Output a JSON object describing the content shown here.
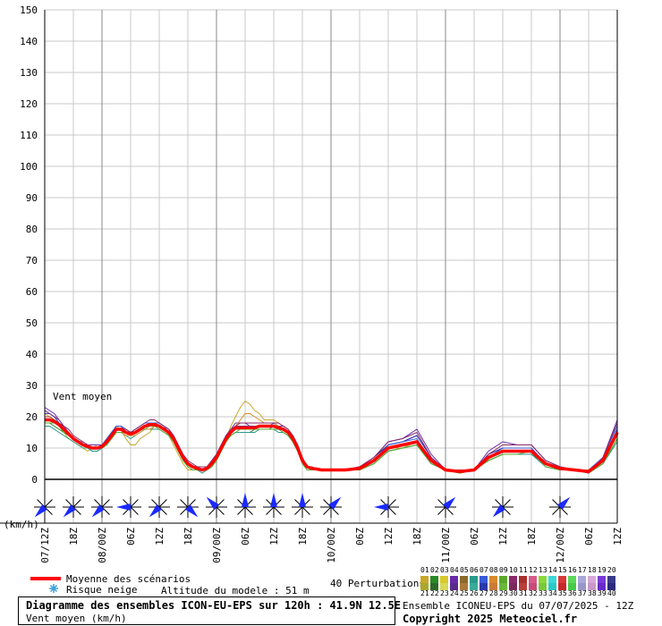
{
  "chart_data": {
    "type": "line",
    "title": "Diagramme des ensembles ICON-EU-EPS sur 120h : 41.9N 12.5E",
    "subtitle": "Vent moyen (km/h)",
    "series_label": "Vent moyen",
    "yunit": "(km/h)",
    "ylim": [
      0,
      150
    ],
    "yticks": [
      0,
      10,
      20,
      30,
      40,
      50,
      60,
      70,
      80,
      90,
      100,
      110,
      120,
      130,
      140,
      150
    ],
    "xlim": [
      12,
      132
    ],
    "xticks": [
      {
        "h": 12,
        "label": "07/12Z"
      },
      {
        "h": 18,
        "label": "18Z"
      },
      {
        "h": 24,
        "label": "08/00Z"
      },
      {
        "h": 30,
        "label": "06Z"
      },
      {
        "h": 36,
        "label": "12Z"
      },
      {
        "h": 42,
        "label": "18Z"
      },
      {
        "h": 48,
        "label": "09/00Z"
      },
      {
        "h": 54,
        "label": "06Z"
      },
      {
        "h": 60,
        "label": "12Z"
      },
      {
        "h": 66,
        "label": "18Z"
      },
      {
        "h": 72,
        "label": "10/00Z"
      },
      {
        "h": 78,
        "label": "06Z"
      },
      {
        "h": 84,
        "label": "12Z"
      },
      {
        "h": 90,
        "label": "18Z"
      },
      {
        "h": 96,
        "label": "11/00Z"
      },
      {
        "h": 102,
        "label": "06Z"
      },
      {
        "h": 108,
        "label": "12Z"
      },
      {
        "h": 114,
        "label": "18Z"
      },
      {
        "h": 120,
        "label": "12/00Z"
      },
      {
        "h": 126,
        "label": "06Z"
      },
      {
        "h": 132,
        "label": "12Z"
      }
    ],
    "grid": true,
    "mean": {
      "name": "Moyenne des scénarios",
      "x": [
        12,
        13,
        14,
        15,
        16,
        17,
        18,
        19,
        20,
        21,
        22,
        23,
        24,
        25,
        26,
        27,
        28,
        29,
        30,
        31,
        32,
        33,
        34,
        35,
        36,
        37,
        38,
        39,
        40,
        41,
        42,
        43,
        44,
        45,
        46,
        47,
        48,
        49,
        50,
        51,
        52,
        53,
        54,
        55,
        56,
        57,
        58,
        59,
        60,
        61,
        62,
        63,
        64,
        65,
        66,
        67,
        68,
        69,
        70,
        72,
        75,
        78,
        81,
        84,
        87,
        90,
        93,
        96,
        99,
        102,
        105,
        108,
        111,
        114,
        117,
        120,
        123,
        126,
        129,
        132
      ],
      "y": [
        19,
        19,
        18.5,
        17.5,
        16,
        14.5,
        13,
        12,
        11,
        10.5,
        10,
        10,
        10.5,
        12,
        14,
        16,
        16,
        15,
        14.5,
        15,
        16,
        17,
        17.5,
        17.5,
        17,
        16,
        15,
        13,
        10,
        7,
        5,
        4,
        3.5,
        3,
        3.5,
        5,
        7,
        10,
        13,
        15,
        16.5,
        16.5,
        16.5,
        16.5,
        16.5,
        17,
        17,
        17,
        17,
        16.5,
        16,
        15,
        13,
        10,
        6,
        4,
        3.5,
        3.3,
        3,
        3,
        3,
        3.5,
        6,
        10,
        11,
        12,
        6,
        3,
        2.5,
        3,
        7,
        9,
        9,
        9,
        5,
        3.5,
        3,
        2.5,
        6,
        15
      ]
    },
    "members": [
      {
        "name": "01",
        "color": "#c8a82a",
        "y": [
          21,
          20,
          19,
          17,
          15,
          13,
          12,
          11,
          10,
          9,
          10,
          11,
          11,
          12,
          15,
          17,
          16,
          13,
          11,
          11,
          13,
          14,
          15,
          17,
          17,
          16,
          14,
          11,
          8,
          5,
          3,
          3,
          3,
          2,
          3,
          4,
          6,
          9,
          13,
          17,
          20,
          23,
          25,
          24,
          22,
          21,
          19,
          19,
          19,
          18,
          17,
          16,
          14,
          11,
          7,
          4,
          3,
          3,
          3,
          3,
          3,
          3,
          6,
          10,
          10,
          12,
          6,
          3,
          2,
          3,
          7,
          9,
          9,
          9,
          5,
          3,
          3,
          3,
          6,
          14
        ]
      },
      {
        "name": "02",
        "color": "#2a8a2a",
        "y": [
          18,
          18,
          17,
          16,
          15,
          14,
          13,
          12,
          11,
          10,
          10,
          10,
          10,
          11,
          13,
          15,
          15,
          14,
          14,
          15,
          16,
          17,
          17,
          17,
          17,
          16,
          15,
          13,
          10,
          7,
          5,
          4,
          3,
          3,
          3,
          5,
          7,
          9,
          12,
          14,
          15,
          15,
          15,
          15,
          16,
          16,
          16,
          16,
          17,
          16,
          16,
          15,
          13,
          10,
          6,
          4,
          3,
          3,
          3,
          3,
          3,
          3,
          5,
          9,
          10,
          11,
          5,
          3,
          2,
          3,
          6,
          8,
          8,
          8,
          5,
          3,
          3,
          2,
          5,
          13
        ]
      },
      {
        "name": "03",
        "color": "#1a1a9a",
        "y": [
          22,
          21,
          20,
          18,
          17,
          15,
          13,
          12,
          11,
          10,
          9,
          9,
          10,
          12,
          14,
          17,
          17,
          16,
          15,
          16,
          17,
          18,
          18,
          18,
          17,
          16,
          15,
          13,
          10,
          7,
          5,
          4,
          4,
          3,
          4,
          5,
          7,
          10,
          13,
          15,
          17,
          17,
          16,
          16,
          16,
          17,
          17,
          17,
          17,
          17,
          16,
          15,
          13,
          10,
          6,
          4,
          4,
          3,
          3,
          3,
          3,
          4,
          7,
          11,
          12,
          14,
          7,
          3,
          3,
          3,
          8,
          10,
          10,
          10,
          5,
          4,
          3,
          2,
          6,
          16
        ]
      },
      {
        "name": "04",
        "color": "#6a2aa8",
        "y": [
          23,
          22,
          21,
          19,
          17,
          15,
          13,
          12,
          12,
          11,
          11,
          11,
          11,
          13,
          15,
          17,
          17,
          15,
          14,
          15,
          16,
          17,
          18,
          18,
          18,
          17,
          16,
          14,
          11,
          7,
          5,
          4,
          3,
          3,
          4,
          6,
          8,
          11,
          14,
          16,
          18,
          18,
          18,
          17,
          17,
          17,
          17,
          17,
          17,
          17,
          17,
          16,
          14,
          11,
          6,
          4,
          3,
          3,
          3,
          3,
          3,
          4,
          7,
          12,
          13,
          16,
          8,
          3,
          3,
          3,
          9,
          12,
          11,
          11,
          6,
          4,
          3,
          2,
          7,
          19
        ]
      },
      {
        "name": "05",
        "color": "#a8302a",
        "y": [
          20,
          20,
          19,
          18,
          16,
          15,
          13,
          12,
          11,
          11,
          10,
          10,
          11,
          12,
          14,
          16,
          16,
          15,
          15,
          15,
          16,
          17,
          17,
          17,
          17,
          16,
          15,
          13,
          10,
          7,
          5,
          4,
          3,
          3,
          3,
          5,
          7,
          10,
          13,
          15,
          16,
          16,
          16,
          16,
          16,
          17,
          17,
          17,
          17,
          16,
          16,
          15,
          13,
          10,
          6,
          4,
          3,
          3,
          3,
          3,
          3,
          4,
          6,
          10,
          11,
          12,
          6,
          3,
          2,
          3,
          7,
          9,
          9,
          9,
          5,
          3,
          3,
          3,
          6,
          15
        ]
      },
      {
        "name": "06",
        "color": "#2a9a8a",
        "y": [
          17,
          17,
          16,
          15,
          14,
          13,
          12,
          11,
          10,
          10,
          9,
          9,
          10,
          11,
          13,
          15,
          15,
          14,
          13,
          14,
          15,
          16,
          16,
          16,
          16,
          15,
          14,
          12,
          9,
          6,
          4,
          3,
          3,
          2,
          3,
          4,
          6,
          9,
          12,
          14,
          15,
          15,
          15,
          15,
          15,
          16,
          16,
          16,
          16,
          15,
          15,
          14,
          12,
          9,
          5,
          3,
          3,
          3,
          3,
          3,
          3,
          3,
          5,
          9,
          10,
          11,
          5,
          3,
          2,
          3,
          6,
          8,
          8,
          8,
          4,
          3,
          3,
          2,
          5,
          12
        ]
      },
      {
        "name": "07",
        "color": "#3a5ad8",
        "y": [
          21,
          21,
          20,
          18,
          16,
          14,
          13,
          12,
          11,
          10,
          10,
          10,
          11,
          13,
          15,
          17,
          17,
          16,
          15,
          16,
          17,
          18,
          18,
          18,
          18,
          17,
          15,
          13,
          10,
          7,
          5,
          4,
          3,
          3,
          4,
          5,
          8,
          11,
          14,
          16,
          17,
          17,
          17,
          17,
          17,
          17,
          17,
          17,
          18,
          17,
          16,
          15,
          13,
          10,
          6,
          4,
          3,
          3,
          3,
          3,
          3,
          4,
          6,
          11,
          12,
          13,
          6,
          3,
          2,
          3,
          7,
          10,
          10,
          10,
          5,
          4,
          3,
          3,
          7,
          17
        ]
      },
      {
        "name": "08",
        "color": "#d88a2a",
        "y": [
          19,
          19,
          18,
          17,
          16,
          14,
          13,
          12,
          11,
          10,
          10,
          10,
          10,
          12,
          13,
          15,
          15,
          14,
          14,
          14,
          15,
          16,
          16,
          17,
          17,
          16,
          15,
          13,
          10,
          7,
          5,
          4,
          3,
          3,
          3,
          5,
          7,
          10,
          13,
          15,
          17,
          19,
          21,
          21,
          20,
          19,
          18,
          18,
          18,
          17,
          16,
          15,
          13,
          10,
          6,
          4,
          3,
          3,
          3,
          3,
          3,
          3,
          6,
          10,
          11,
          12,
          6,
          3,
          2,
          3,
          7,
          9,
          9,
          9,
          5,
          3,
          3,
          3,
          6,
          14
        ]
      },
      {
        "name": "09",
        "color": "#5aa82a",
        "y": [
          18,
          18,
          18,
          17,
          15,
          14,
          13,
          12,
          11,
          10,
          10,
          10,
          10,
          11,
          13,
          15,
          15,
          15,
          14,
          15,
          16,
          16,
          17,
          17,
          16,
          15,
          14,
          12,
          9,
          6,
          4,
          3,
          3,
          3,
          3,
          4,
          6,
          9,
          12,
          14,
          15,
          16,
          16,
          16,
          16,
          16,
          16,
          16,
          16,
          16,
          15,
          14,
          12,
          9,
          5,
          3,
          3,
          3,
          3,
          3,
          3,
          3,
          5,
          9,
          10,
          11,
          5,
          3,
          2,
          3,
          6,
          8,
          8,
          9,
          4,
          3,
          3,
          2,
          5,
          13
        ]
      },
      {
        "name": "10",
        "color": "#8a2a6a",
        "y": [
          22,
          21,
          20,
          19,
          17,
          16,
          14,
          13,
          12,
          11,
          10,
          10,
          11,
          12,
          14,
          16,
          16,
          16,
          15,
          16,
          17,
          18,
          19,
          19,
          18,
          17,
          16,
          14,
          11,
          8,
          6,
          5,
          4,
          4,
          4,
          6,
          8,
          11,
          14,
          16,
          17,
          18,
          18,
          18,
          18,
          18,
          18,
          18,
          18,
          18,
          17,
          16,
          14,
          11,
          7,
          4,
          4,
          3,
          3,
          3,
          3,
          4,
          7,
          12,
          13,
          15,
          7,
          3,
          3,
          3,
          8,
          11,
          11,
          11,
          6,
          4,
          3,
          2,
          7,
          18
        ]
      }
    ],
    "wind_dirs": [
      {
        "h": 12,
        "dir": "SW"
      },
      {
        "h": 18,
        "dir": "SW"
      },
      {
        "h": 24,
        "dir": "SW"
      },
      {
        "h": 30,
        "dir": "W"
      },
      {
        "h": 36,
        "dir": "SW"
      },
      {
        "h": 42,
        "dir": "SE"
      },
      {
        "h": 48,
        "dir": "NW"
      },
      {
        "h": 54,
        "dir": "N"
      },
      {
        "h": 60,
        "dir": "N"
      },
      {
        "h": 66,
        "dir": "N"
      },
      {
        "h": 72,
        "dir": "NE"
      },
      {
        "h": 84,
        "dir": "W"
      },
      {
        "h": 96,
        "dir": "NE"
      },
      {
        "h": 108,
        "dir": "SW"
      },
      {
        "h": 120,
        "dir": "NE"
      }
    ]
  },
  "legend": {
    "mean_label": "Moyenne des scénarios",
    "mean_color": "#ff0000",
    "snow_label": "Risque neige",
    "altitude_label": "Altitude du modele : 51 m",
    "perturbations_label": "40 Perturbations",
    "swatch_numbers_top": [
      "01",
      "02",
      "03",
      "04",
      "05",
      "06",
      "07",
      "08",
      "09",
      "10",
      "11",
      "12",
      "13",
      "14",
      "15",
      "16",
      "17",
      "18",
      "19",
      "20"
    ],
    "swatch_numbers_bottom": [
      "21",
      "22",
      "23",
      "24",
      "25",
      "26",
      "27",
      "28",
      "29",
      "30",
      "31",
      "32",
      "33",
      "34",
      "35",
      "36",
      "37",
      "38",
      "39",
      "40"
    ],
    "swatch_colors": [
      "#c8a82a",
      "#2a8a2a",
      "#d8c82a",
      "#6a2aa8",
      "#8a6a2a",
      "#2a9a8a",
      "#3a5ad8",
      "#d88a2a",
      "#5aa82a",
      "#8a2a6a",
      "#a8302a",
      "#d85a8a",
      "#8ad83a",
      "#3ad8d8",
      "#d83a3a",
      "#5ad85a",
      "#a8a8d8",
      "#d8a8d8",
      "#7a3ad8",
      "#3a3a8a"
    ],
    "swatch_colors2": [
      "#a8a82a",
      "#2a6a2a",
      "#d8d85a",
      "#5a2a8a",
      "#aa7a3a",
      "#3aaa9a",
      "#2a3aa8",
      "#c87a3a",
      "#6ab83a",
      "#7a2a5a",
      "#b8403a",
      "#c84a7a",
      "#7ac83a",
      "#2ac8c8",
      "#c82a2a",
      "#4ac84a",
      "#9898c8",
      "#c898c8",
      "#6a2ac8",
      "#2a2a7a"
    ]
  },
  "footer": {
    "title": "Diagramme des ensembles ICON-EU-EPS sur 120h : 41.9N 12.5E",
    "subtitle": "Vent moyen (km/h)",
    "run": "Ensemble ICONEU-EPS du 07/07/2025 - 12Z",
    "copyright": "Copyright 2025 Meteociel.fr"
  }
}
